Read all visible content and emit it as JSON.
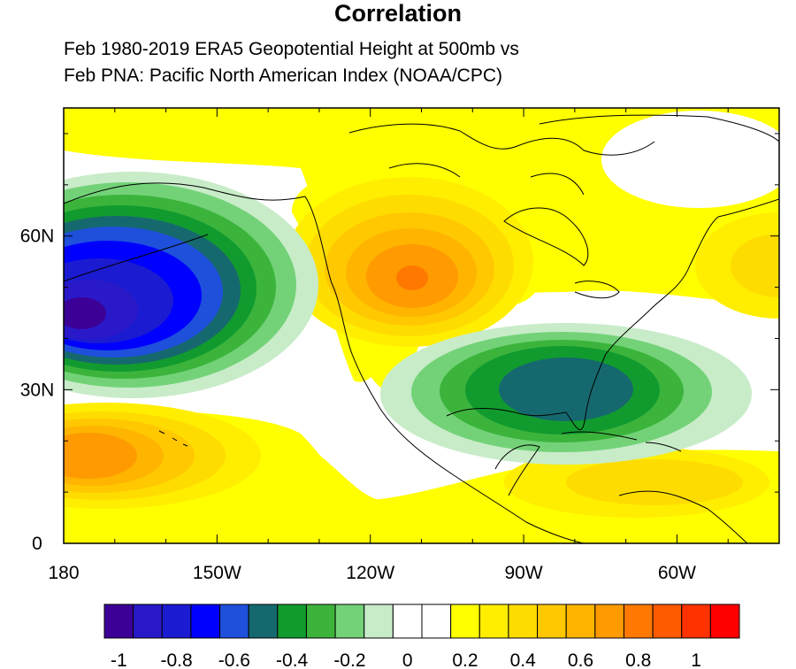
{
  "title": "Correlation",
  "subtitle_line1": "Feb 1980-2019 ERA5 Geopotential Height at 500mb vs",
  "subtitle_line2": "Feb PNA: Pacific North American Index (NOAA/CPC)",
  "map": {
    "lon_range": [
      180,
      320
    ],
    "lat_range": [
      0,
      85
    ],
    "lon_ticks": [
      {
        "value": 180,
        "label": "180"
      },
      {
        "value": 210,
        "label": "150W"
      },
      {
        "value": 240,
        "label": "120W"
      },
      {
        "value": 270,
        "label": "90W"
      },
      {
        "value": 300,
        "label": "60W"
      }
    ],
    "lat_ticks": [
      {
        "value": 0,
        "label": "0"
      },
      {
        "value": 30,
        "label": "30N"
      },
      {
        "value": 60,
        "label": "60N"
      }
    ],
    "features": [
      {
        "name": "north-pacific-negative-center",
        "lon": 187,
        "lat": 46,
        "peak_value": -0.95
      },
      {
        "name": "canada-positive-center",
        "lon": 250,
        "lat": 52,
        "peak_value": 0.65
      },
      {
        "name": "southeast-us-negative-center",
        "lon": 272,
        "lat": 30,
        "peak_value": -0.6
      },
      {
        "name": "subtropical-pacific-positive-center",
        "lon": 188,
        "lat": 17,
        "peak_value": 0.55
      },
      {
        "name": "caribbean-positive-area",
        "lon": 295,
        "lat": 13,
        "peak_value": 0.3
      },
      {
        "name": "labrador-sea-positive-area",
        "lon": 317,
        "lat": 55,
        "peak_value": 0.35
      }
    ]
  },
  "colorbar": {
    "colors": [
      "#3c0096",
      "#2a19c8",
      "#1b1bd2",
      "#0000ff",
      "#1e50dc",
      "#15696e",
      "#119b2e",
      "#3cb43c",
      "#73d278",
      "#c8ecc8",
      "#ffffff",
      "#ffffff",
      "#ffff00",
      "#ffee00",
      "#ffdc00",
      "#ffc800",
      "#ffb400",
      "#ff9a00",
      "#ff7800",
      "#ff5a00",
      "#ff3200",
      "#ff0000"
    ],
    "labels": [
      {
        "value": -1,
        "text": "-1"
      },
      {
        "value": -0.8,
        "text": "-0.8"
      },
      {
        "value": -0.6,
        "text": "-0.6"
      },
      {
        "value": -0.4,
        "text": "-0.4"
      },
      {
        "value": -0.2,
        "text": "-0.2"
      },
      {
        "value": 0,
        "text": "0"
      },
      {
        "value": 0.2,
        "text": "0.2"
      },
      {
        "value": 0.4,
        "text": "0.4"
      },
      {
        "value": 0.6,
        "text": "0.6"
      },
      {
        "value": 0.8,
        "text": "0.8"
      },
      {
        "value": 1,
        "text": "1"
      }
    ]
  }
}
